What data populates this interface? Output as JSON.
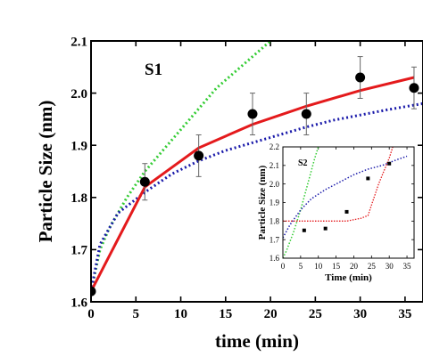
{
  "chart_data": [
    {
      "type": "scatter",
      "panel_label": "S1",
      "xlabel": "time (min)",
      "ylabel": "Particle Size (nm)",
      "xlim": [
        0,
        37
      ],
      "ylim": [
        1.6,
        2.1
      ],
      "xticks": [
        0,
        5,
        10,
        15,
        20,
        25,
        30,
        35
      ],
      "yticks": [
        1.6,
        1.7,
        1.8,
        1.9,
        2.0,
        2.1
      ],
      "xtick_labels": [
        "0",
        "5",
        "10",
        "15",
        "20",
        "25",
        "30",
        "35"
      ],
      "ytick_labels": [
        "1.6",
        "1.7",
        "1.8",
        "1.9",
        "2.0",
        "2.1"
      ],
      "colors": {
        "points": "#000000",
        "red": "#e41a1c",
        "blue": "#1a1aaa",
        "green": "#33cc33"
      },
      "points": {
        "x": [
          0,
          6,
          12,
          18,
          24,
          30,
          36
        ],
        "y": [
          1.62,
          1.83,
          1.88,
          1.96,
          1.96,
          2.03,
          2.01
        ],
        "err": [
          0,
          0.035,
          0.04,
          0.04,
          0.04,
          0.04,
          0.04
        ]
      },
      "red_line": {
        "x": [
          0,
          6,
          12,
          18,
          24,
          30,
          36
        ],
        "y": [
          1.62,
          1.82,
          1.895,
          1.94,
          1.975,
          2.005,
          2.03
        ]
      },
      "blue_line": {
        "x": [
          0,
          1,
          3,
          6,
          9,
          12,
          15,
          18,
          21,
          24,
          27,
          30,
          33,
          37
        ],
        "y": [
          1.62,
          1.71,
          1.77,
          1.81,
          1.845,
          1.87,
          1.89,
          1.905,
          1.92,
          1.935,
          1.948,
          1.958,
          1.968,
          1.98
        ]
      },
      "green_line": {
        "x": [
          0,
          1,
          2,
          4,
          6,
          8,
          10,
          12,
          14,
          16,
          18,
          20
        ],
        "y": [
          1.62,
          1.7,
          1.74,
          1.8,
          1.85,
          1.89,
          1.93,
          1.97,
          2.01,
          2.04,
          2.07,
          2.1
        ]
      }
    },
    {
      "type": "scatter",
      "panel_label": "S2",
      "xlabel": "Time (min)",
      "ylabel": "Particle Size (nm)",
      "xlim": [
        0,
        37
      ],
      "ylim": [
        1.6,
        2.2
      ],
      "xticks": [
        0,
        5,
        10,
        15,
        20,
        25,
        30,
        35
      ],
      "yticks": [
        1.6,
        1.7,
        1.8,
        1.9,
        2.0,
        2.1,
        2.2
      ],
      "xtick_labels": [
        "0",
        "5",
        "10",
        "15",
        "20",
        "25",
        "30",
        "35"
      ],
      "ytick_labels": [
        "1.6",
        "1.7",
        "1.8",
        "1.9",
        "2.0",
        "2.1",
        "2.2"
      ],
      "points": {
        "x": [
          6,
          12,
          18,
          24,
          30
        ],
        "y": [
          1.75,
          1.76,
          1.85,
          2.03,
          2.11
        ]
      },
      "red_line": {
        "x": [
          0,
          3,
          6,
          10,
          14,
          18,
          22,
          24,
          27,
          30,
          31
        ],
        "y": [
          1.8,
          1.8,
          1.8,
          1.8,
          1.8,
          1.8,
          1.815,
          1.83,
          2.0,
          2.14,
          2.2
        ]
      },
      "blue_line": {
        "x": [
          0,
          2,
          5,
          8,
          12,
          16,
          20,
          24,
          28,
          32,
          35
        ],
        "y": [
          1.71,
          1.78,
          1.86,
          1.92,
          1.97,
          2.01,
          2.05,
          2.08,
          2.1,
          2.13,
          2.15
        ]
      },
      "green_line": {
        "x": [
          0,
          1,
          2,
          3,
          4,
          5,
          6,
          7,
          8,
          9,
          10
        ],
        "y": [
          1.6,
          1.64,
          1.69,
          1.74,
          1.8,
          1.86,
          1.93,
          2.0,
          2.07,
          2.14,
          2.2
        ]
      }
    }
  ]
}
